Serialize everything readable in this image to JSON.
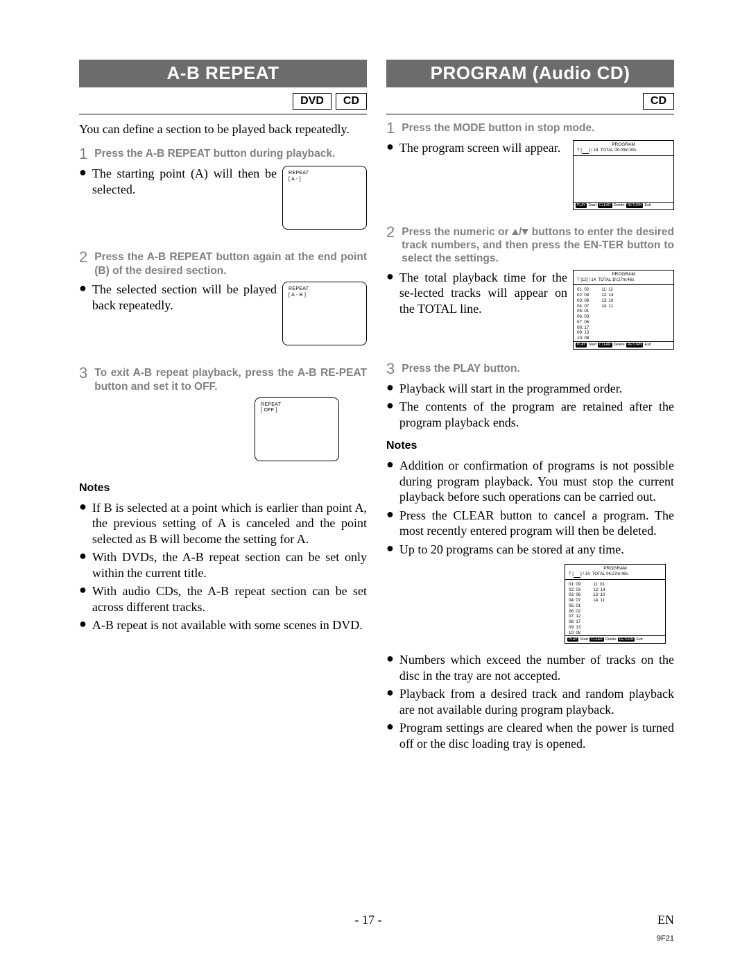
{
  "colors": {
    "header_bg": "#6c6c6c",
    "header_fg": "#ffffff",
    "step_grey": "#808080",
    "text": "#000000",
    "page_bg": "#ffffff"
  },
  "typography": {
    "body_family": "Times New Roman",
    "ui_family": "Arial",
    "header_fontsize_pt": 20,
    "body_fontsize_pt": 13,
    "step_label_fontsize_pt": 12
  },
  "footer": {
    "page": "- 17 -",
    "lang": "EN",
    "code": "9F21"
  },
  "left": {
    "header": "A-B REPEAT",
    "badges": [
      "DVD",
      "CD"
    ],
    "intro": "You can define a section to be played back repeatedly.",
    "steps": [
      {
        "num": "1",
        "title": "Press the A-B REPEAT button during playback.",
        "bullet": "The starting point (A) will then be selected.",
        "screen": {
          "l1": "REPEAT",
          "l2": "[ A -     ]"
        }
      },
      {
        "num": "2",
        "title": "Press the A-B REPEAT button again at the end point (B) of the desired section.",
        "bullet": "The selected section will be played back repeatedly.",
        "screen": {
          "l1": "REPEAT",
          "l2": "[ A - B ]"
        }
      },
      {
        "num": "3",
        "title": "To exit A-B repeat playback, press the A-B RE-PEAT button and set it to OFF.",
        "bullet": "",
        "screen": {
          "l1": "REPEAT",
          "l2": "[ OFF ]"
        }
      }
    ],
    "notes_title": "Notes",
    "notes": [
      "If B is selected at a point which is earlier than point A, the previous setting of A is canceled and the point selected as B will become the setting for A.",
      "With DVDs, the A-B repeat section can be set only within the current title.",
      "With audio CDs, the A-B repeat section can be set across different tracks.",
      "A-B repeat is not available with some scenes in DVD."
    ]
  },
  "right": {
    "header": "PROGRAM (Audio CD)",
    "badges": [
      "CD"
    ],
    "steps": [
      {
        "num": "1",
        "title": "Press the MODE button in stop mode.",
        "bullet": "The program screen will appear.",
        "program": {
          "title": "PROGRAM",
          "total_tracks": "18",
          "total_time": "0h:00m:00s",
          "rows_left": [],
          "rows_right": []
        }
      },
      {
        "num": "2",
        "title_pre": "Press the numeric or ",
        "title_post": " buttons to enter the desired track numbers, and then press the EN-TER button to select the settings.",
        "bullet": "The total playback time for the se-lected tracks will appear on the TOTAL line.",
        "program": {
          "title": "PROGRAM",
          "total_tracks_pre": "12",
          "total_tracks": "14",
          "total_time": "1h:27m:46s",
          "rows_left": [
            "01: 02",
            "02: 04",
            "03: 06",
            "04: 07",
            "05: 01",
            "06: 03",
            "07: 05",
            "08: 17",
            "09: 13",
            "10: 08"
          ],
          "rows_right": [
            "11: 12",
            "12: 14",
            "13: 10",
            "14: 11"
          ]
        }
      },
      {
        "num": "3",
        "title": "Press the PLAY button.",
        "bullets": [
          "Playback will start in the programmed order.",
          "The contents of the program are retained after the program playback ends."
        ]
      }
    ],
    "notes_title": "Notes",
    "notes_a": [
      "Addition or confirmation of programs is not possible during program playback. You must stop the current playback before such operations can be carried out.",
      "Press the CLEAR button to cancel a program. The most recently entered program will then be deleted.",
      "Up to 20 programs can be stored at any time."
    ],
    "notes_program": {
      "title": "PROGRAM",
      "total_tracks": "14",
      "total_time": "0h:27m:46s",
      "rows_left": [
        "01: 09",
        "02: 03",
        "03: 06",
        "04: 07",
        "05: 01",
        "06: 02",
        "07: 12",
        "08: 17",
        "09: 13",
        "10: 08"
      ],
      "rows_right": [
        "11: 01",
        "12: 14",
        "13: 10",
        "14: 11"
      ]
    },
    "notes_b": [
      "Numbers which exceed the number of tracks on the disc in the tray are not accepted.",
      "Playback from a desired track and random playback are not available during program playback.",
      "Program settings are cleared when the power is turned off or the disc loading tray is opened."
    ],
    "program_footer": {
      "tags": [
        "PLAY",
        "CLEAR",
        "RETURN"
      ],
      "labels": [
        "Start",
        "Delete",
        "Exit"
      ]
    }
  }
}
